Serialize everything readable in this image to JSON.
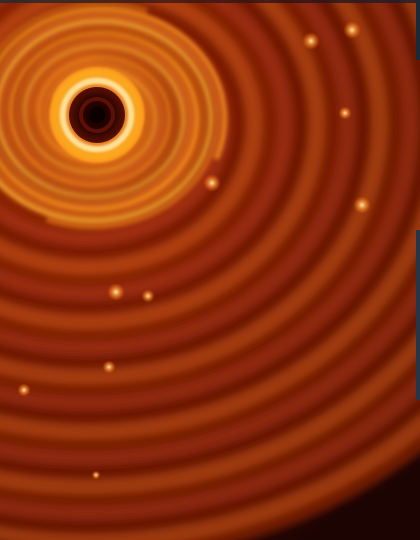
{
  "image": {
    "subject": "spiral-disk",
    "palette": {
      "core": "#0d0000",
      "inner_ring": "#ffe39a",
      "bright": "#ffb020",
      "mid": "#c04a10",
      "outer": "#6a1408",
      "background": "#2a0604",
      "edge_tint": "#26354a"
    }
  }
}
